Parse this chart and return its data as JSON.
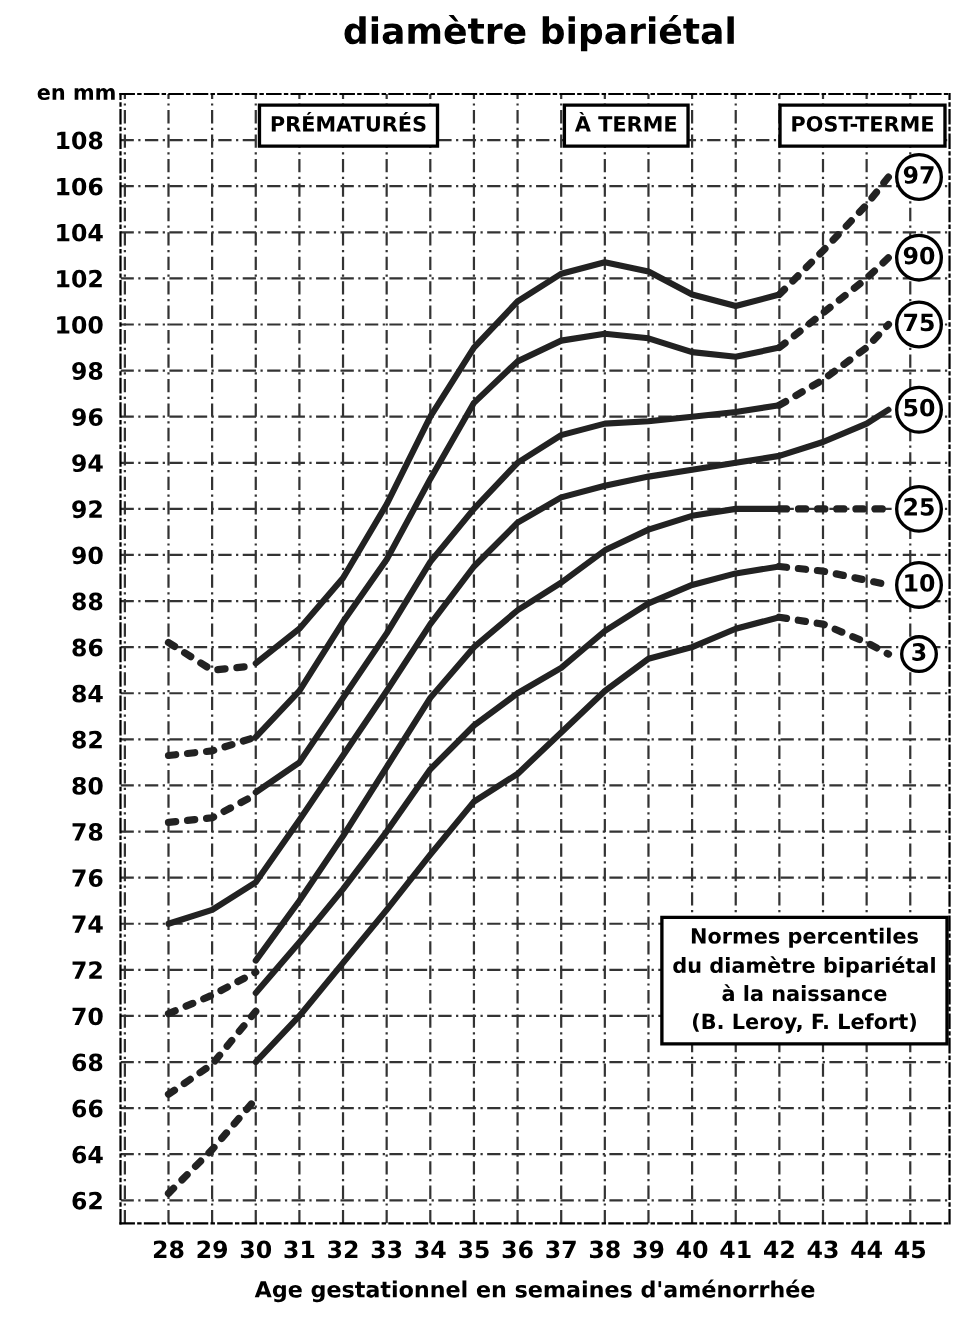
{
  "chart_data": {
    "type": "line",
    "title": "diamètre bipariétal",
    "xlabel": "Age gestationnel en semaines d'aménorrhée",
    "ylabel": "en mm",
    "xlim": [
      26.9,
      45.9
    ],
    "ylim": [
      61,
      110
    ],
    "xticks": [
      {
        "value": 27,
        "label": null
      },
      28,
      29,
      30,
      31,
      32,
      33,
      34,
      35,
      36,
      37,
      38,
      39,
      40,
      41,
      42,
      43,
      44,
      45
    ],
    "yticks": [
      62,
      64,
      66,
      68,
      70,
      72,
      74,
      76,
      78,
      80,
      82,
      84,
      86,
      88,
      90,
      92,
      94,
      96,
      98,
      100,
      102,
      104,
      106,
      108
    ],
    "grid": true,
    "series": [
      {
        "color": "#222222",
        "line_style": "dotted",
        "x": [
          28,
          29,
          30
        ],
        "values": [
          86.2,
          85.0,
          85.2
        ]
      },
      {
        "color": "#222222",
        "line_style": "solid",
        "x": [
          30,
          31,
          32,
          33,
          34,
          35,
          36,
          37,
          38,
          39,
          40,
          41,
          42
        ],
        "values": [
          85.3,
          86.8,
          89.0,
          92.2,
          96.0,
          99.0,
          101.0,
          102.2,
          102.7,
          102.3,
          101.3,
          100.8,
          101.3
        ]
      },
      {
        "name": "97",
        "color": "#222222",
        "line_style": "dotted",
        "x": [
          42,
          43,
          44,
          44.5
        ],
        "values": [
          101.3,
          103.2,
          105.2,
          106.4
        ]
      },
      {
        "color": "#222222",
        "line_style": "dotted",
        "x": [
          28,
          29,
          30
        ],
        "values": [
          81.3,
          81.5,
          82.1
        ]
      },
      {
        "color": "#222222",
        "line_style": "solid",
        "x": [
          30,
          31,
          32,
          33,
          34,
          35,
          36,
          37,
          38,
          39,
          40,
          41,
          42
        ],
        "values": [
          82.1,
          84.1,
          87.1,
          89.8,
          93.3,
          96.6,
          98.4,
          99.3,
          99.6,
          99.4,
          98.8,
          98.6,
          99.0
        ]
      },
      {
        "name": "90",
        "color": "#222222",
        "line_style": "dotted",
        "x": [
          42,
          43,
          44,
          44.5
        ],
        "values": [
          99.0,
          100.5,
          102.0,
          102.9
        ]
      },
      {
        "color": "#222222",
        "line_style": "dotted",
        "x": [
          28,
          29,
          30
        ],
        "values": [
          78.4,
          78.6,
          79.6
        ]
      },
      {
        "color": "#222222",
        "line_style": "solid",
        "x": [
          30,
          31,
          32,
          33,
          34,
          35,
          36,
          37,
          38,
          39,
          40,
          41,
          42
        ],
        "values": [
          79.7,
          81.0,
          83.8,
          86.6,
          89.7,
          92.0,
          94.0,
          95.2,
          95.7,
          95.8,
          96.0,
          96.2,
          96.5
        ]
      },
      {
        "name": "75",
        "color": "#222222",
        "line_style": "dotted",
        "x": [
          42,
          43,
          44,
          44.5
        ],
        "values": [
          96.5,
          97.6,
          99.0,
          100.0
        ]
      },
      {
        "name": "50",
        "color": "#222222",
        "line_style": "solid",
        "x": [
          28,
          29,
          30,
          31,
          32,
          33,
          34,
          35,
          36,
          37,
          38,
          39,
          40,
          41,
          42,
          43,
          44,
          44.5
        ],
        "values": [
          74.0,
          74.6,
          75.8,
          78.5,
          81.3,
          84.1,
          87.0,
          89.5,
          91.4,
          92.5,
          93.0,
          93.4,
          93.7,
          94.0,
          94.3,
          94.9,
          95.7,
          96.3
        ]
      },
      {
        "color": "#222222",
        "line_style": "dotted",
        "x": [
          28,
          29,
          30
        ],
        "values": [
          70.1,
          70.9,
          71.9
        ]
      },
      {
        "color": "#222222",
        "line_style": "solid",
        "x": [
          30,
          31,
          32,
          33,
          34,
          35,
          36,
          37,
          38,
          39,
          40,
          41,
          42
        ],
        "values": [
          72.4,
          75.0,
          77.8,
          80.8,
          83.8,
          86.0,
          87.6,
          88.8,
          90.2,
          91.1,
          91.7,
          92.0,
          92.0
        ]
      },
      {
        "name": "25",
        "color": "#222222",
        "line_style": "dotted",
        "x": [
          42,
          43,
          44,
          44.5
        ],
        "values": [
          92.0,
          92.0,
          92.0,
          92.0
        ]
      },
      {
        "color": "#222222",
        "line_style": "dotted",
        "x": [
          28,
          29,
          30
        ],
        "values": [
          66.6,
          67.9,
          70.2
        ]
      },
      {
        "color": "#222222",
        "line_style": "solid",
        "x": [
          30,
          31,
          32,
          33,
          34,
          35,
          36,
          37,
          38,
          39,
          40,
          41,
          42
        ],
        "values": [
          71.0,
          73.2,
          75.5,
          78.0,
          80.7,
          82.6,
          84.0,
          85.1,
          86.7,
          87.9,
          88.7,
          89.2,
          89.5
        ]
      },
      {
        "name": "10",
        "color": "#222222",
        "line_style": "dotted",
        "x": [
          42,
          43,
          44,
          44.5
        ],
        "values": [
          89.5,
          89.3,
          88.9,
          88.7
        ]
      },
      {
        "color": "#222222",
        "line_style": "dotted",
        "x": [
          28,
          29,
          30
        ],
        "values": [
          62.3,
          64.2,
          66.4
        ]
      },
      {
        "color": "#222222",
        "line_style": "solid",
        "x": [
          30,
          31,
          32,
          33,
          34,
          35,
          36,
          37,
          38,
          39,
          40,
          41,
          42
        ],
        "values": [
          68.0,
          70.0,
          72.3,
          74.6,
          77.0,
          79.3,
          80.5,
          82.3,
          84.1,
          85.5,
          86.0,
          86.8,
          87.3
        ]
      },
      {
        "name": "3",
        "color": "#222222",
        "line_style": "dotted",
        "x": [
          42,
          43,
          44,
          44.5
        ],
        "values": [
          87.3,
          87.0,
          86.2,
          85.7
        ]
      }
    ],
    "annotations": [
      "PRÉMATURÉS",
      "À TERME",
      "POST-TERME",
      "Normes percentiles\ndu diamètre bipariétal\nà la naissance\n(B. Leroy, F. Lefort)"
    ]
  }
}
